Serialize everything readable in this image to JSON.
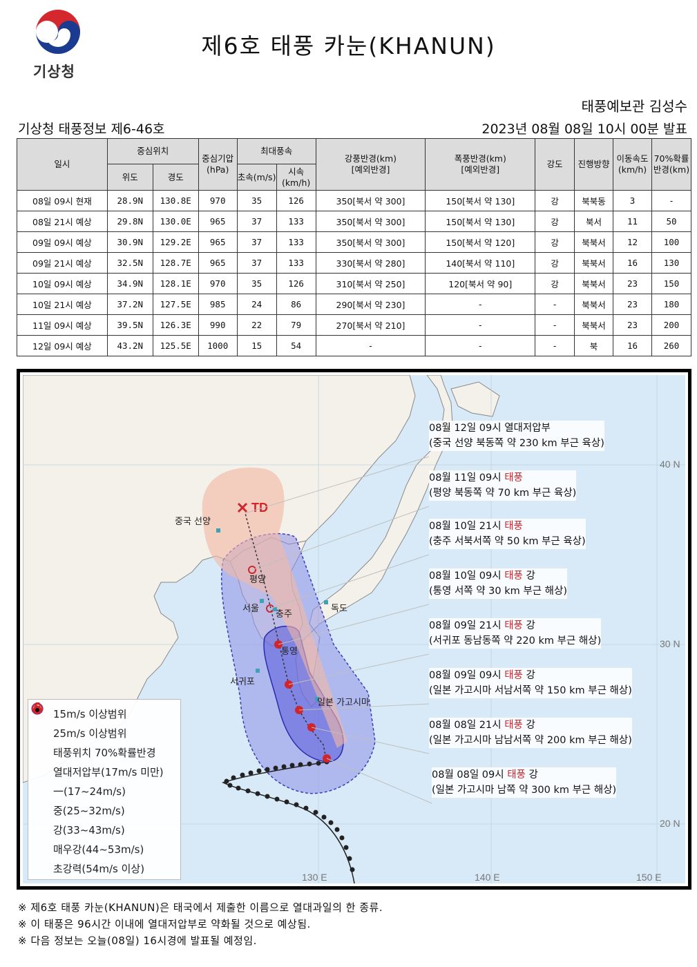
{
  "header": {
    "logo_text": "기상청",
    "title": "제6호 태풍 카눈(KHANUN)",
    "forecaster": "태풍예보관 김성수",
    "bulletin": "기상청 태풍정보 제6-46호",
    "issued": "2023년 08월 08일 10시 00분 발표"
  },
  "table": {
    "headers": {
      "datetime": "일시",
      "center": "중심위치",
      "lat": "위도",
      "lon": "경도",
      "pressure": "중심기압(hPa)",
      "maxwind": "최대풍속",
      "ms": "초속(m/s)",
      "kmh": "시속(km/h)",
      "strong_radius": "강풍반경(km)",
      "strong_radius_sub": "[예외반경]",
      "storm_radius": "폭풍반경(km)",
      "storm_radius_sub": "[예외반경]",
      "intensity": "강도",
      "direction": "진행방향",
      "speed": "이동속도(km/h)",
      "prob": "70%확률반경(km)"
    },
    "rows": [
      {
        "time": "08일 09시 현재",
        "lat": "28.9N",
        "lon": "130.8E",
        "pres": "970",
        "ms": "35",
        "kmh": "126",
        "strong": "350[북서 약 300]",
        "storm": "150[북서 약 130]",
        "int": "강",
        "dir": "북북동",
        "spd": "3",
        "prob": "-"
      },
      {
        "time": "08일 21시 예상",
        "lat": "29.8N",
        "lon": "130.0E",
        "pres": "965",
        "ms": "37",
        "kmh": "133",
        "strong": "350[북서 약 300]",
        "storm": "150[북서 약 130]",
        "int": "강",
        "dir": "북서",
        "spd": "11",
        "prob": "50"
      },
      {
        "time": "09일 09시 예상",
        "lat": "30.9N",
        "lon": "129.2E",
        "pres": "965",
        "ms": "37",
        "kmh": "133",
        "strong": "350[북서 약 300]",
        "storm": "150[북서 약 120]",
        "int": "강",
        "dir": "북북서",
        "spd": "12",
        "prob": "100"
      },
      {
        "time": "09일 21시 예상",
        "lat": "32.5N",
        "lon": "128.7E",
        "pres": "965",
        "ms": "37",
        "kmh": "133",
        "strong": "330[북서 약 280]",
        "storm": "140[북서 약 110]",
        "int": "강",
        "dir": "북북서",
        "spd": "16",
        "prob": "130"
      },
      {
        "time": "10일 09시 예상",
        "lat": "34.9N",
        "lon": "128.1E",
        "pres": "970",
        "ms": "35",
        "kmh": "126",
        "strong": "310[북서 약 250]",
        "storm": "120[북서 약 90]",
        "int": "강",
        "dir": "북북서",
        "spd": "23",
        "prob": "150"
      },
      {
        "time": "10일 21시 예상",
        "lat": "37.2N",
        "lon": "127.5E",
        "pres": "985",
        "ms": "24",
        "kmh": "86",
        "strong": "290[북서 약 230]",
        "storm": "-",
        "int": "-",
        "dir": "북북서",
        "spd": "23",
        "prob": "180"
      },
      {
        "time": "11일 09시 예상",
        "lat": "39.5N",
        "lon": "126.3E",
        "pres": "990",
        "ms": "22",
        "kmh": "79",
        "strong": "270[북서 약 210]",
        "storm": "-",
        "int": "-",
        "dir": "북북서",
        "spd": "23",
        "prob": "200"
      },
      {
        "time": "12일 09시 예상",
        "lat": "43.2N",
        "lon": "125.5E",
        "pres": "1000",
        "ms": "15",
        "kmh": "54",
        "strong": "-",
        "storm": "-",
        "int": "-",
        "dir": "북",
        "spd": "16",
        "prob": "260"
      }
    ]
  },
  "map": {
    "td_label": "TD",
    "places": {
      "shenyang": "중국 선양",
      "pyongyang": "평양",
      "seoul": "서울",
      "chungju": "충주",
      "tongyeong": "통영",
      "dokdo": "독도",
      "seogwipo": "서귀포",
      "kagoshima": "일본 가고시마"
    },
    "lat_labels": {
      "n40": "40 N",
      "n30": "30 N",
      "n20": "20 N"
    },
    "lon_labels": {
      "e130": "130 E",
      "e140": "140 E",
      "e150": "150 E"
    },
    "callouts": [
      {
        "line1_pre": "08월 12일 09시 열대저압부",
        "line1_red": "",
        "line1_post": "",
        "line2": "(중국 선양 북동쪽 약 230 km 부근 육상)"
      },
      {
        "line1_pre": "08월 11일 09시 ",
        "line1_red": "태풍",
        "line1_post": "",
        "line2": "(평양 북동쪽 약 70 km 부근 육상)"
      },
      {
        "line1_pre": "08월 10일 21시 ",
        "line1_red": "태풍",
        "line1_post": "",
        "line2": "(충주 서북서쪽 약 50 km 부근 육상)"
      },
      {
        "line1_pre": "08월 10일 09시 ",
        "line1_red": "태풍",
        "line1_post": " 강",
        "line2": "(통영 서쪽 약 30 km 부근 해상)"
      },
      {
        "line1_pre": "08월 09일 21시 ",
        "line1_red": "태풍",
        "line1_post": " 강",
        "line2": "(서귀포 동남동쪽 약 220 km 부근 해상)"
      },
      {
        "line1_pre": "08월 09일 09시 ",
        "line1_red": "태풍",
        "line1_post": " 강",
        "line2": "(일본 가고시마 서남서쪽 약 150 km 부근 해상)"
      },
      {
        "line1_pre": "08월 08일 21시 ",
        "line1_red": "태풍",
        "line1_post": " 강",
        "line2": "(일본 가고시마 남남서쪽 약 200 km 부근 해상)"
      },
      {
        "line1_pre": "08월 08일 09시 ",
        "line1_red": "태풍",
        "line1_post": " 강",
        "line2": "(일본 가고시마 남쪽 약 300 km 부근 해상)"
      }
    ],
    "legend": [
      {
        "icon": "circle-light-blue-icon",
        "label": "15m/s 이상범위"
      },
      {
        "icon": "circle-dark-blue-icon",
        "label": "25m/s 이상범위"
      },
      {
        "icon": "circle-pink-icon",
        "label": "태풍위치 70%확률반경"
      },
      {
        "icon": "td-x-icon",
        "label": "열대저압부(17m/s 미만)"
      },
      {
        "icon": "typhoon-weak-icon",
        "label": "一(17~24m/s)"
      },
      {
        "icon": "typhoon-medium-icon",
        "label": "중(25~32m/s)"
      },
      {
        "icon": "typhoon-strong-icon",
        "label": "강(33~43m/s)"
      },
      {
        "icon": "typhoon-verystrong-icon",
        "label": "매우강(44~53m/s)"
      },
      {
        "icon": "typhoon-super-icon",
        "label": "초강력(54m/s 이상)"
      }
    ],
    "colors": {
      "sea": "#d8eaf7",
      "land": "#f3f1e9",
      "band15": "#8f8fe6",
      "band25": "#5a5ad8",
      "prob": "#f4b8a4",
      "red": "#d0252b"
    }
  },
  "notes": [
    "※ 제6호 태풍 카눈(KHANUN)은 태국에서 제출한 이름으로 열대과일의 한 종류.",
    "※ 이 태풍은 96시간 이내에 열대저압부로 약화될 것으로 예상됨.",
    "※ 다음 정보는 오늘(08일) 16시경에 발표될 예정임."
  ]
}
